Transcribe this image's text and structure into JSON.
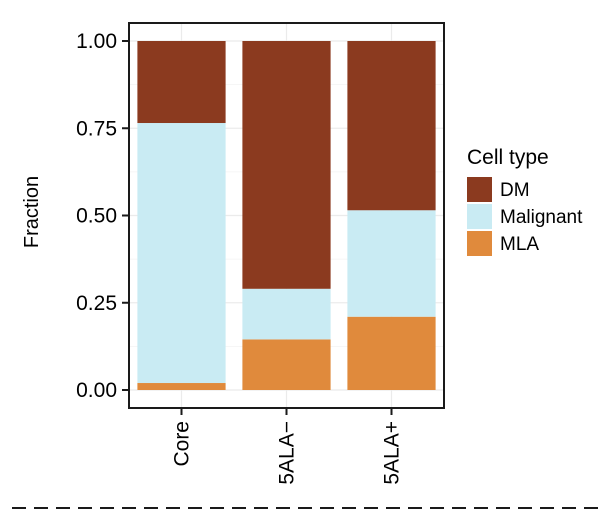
{
  "chart_data": {
    "type": "bar",
    "stacked": true,
    "categories": [
      "Core",
      "5ALA−",
      "5ALA+"
    ],
    "series": [
      {
        "name": "MLA",
        "color": "#e08a3c",
        "values": [
          0.02,
          0.145,
          0.21
        ]
      },
      {
        "name": "Malignant",
        "color": "#c9ebf3",
        "values": [
          0.745,
          0.145,
          0.305
        ]
      },
      {
        "name": "DM",
        "color": "#8b3a1f",
        "values": [
          0.235,
          0.71,
          0.485
        ]
      }
    ],
    "ylabel": "Fraction",
    "xlabel": "",
    "ylim": [
      0,
      1
    ],
    "yticks": [
      "0.00",
      "0.25",
      "0.50",
      "0.75",
      "1.00"
    ],
    "ytick_values": [
      0,
      0.25,
      0.5,
      0.75,
      1
    ],
    "grid": true,
    "legend": {
      "title": "Cell type",
      "placement": "right",
      "entries": [
        {
          "name": "DM",
          "color": "#8b3a1f"
        },
        {
          "name": "Malignant",
          "color": "#c9ebf3"
        },
        {
          "name": "MLA",
          "color": "#e08a3c"
        }
      ]
    }
  }
}
